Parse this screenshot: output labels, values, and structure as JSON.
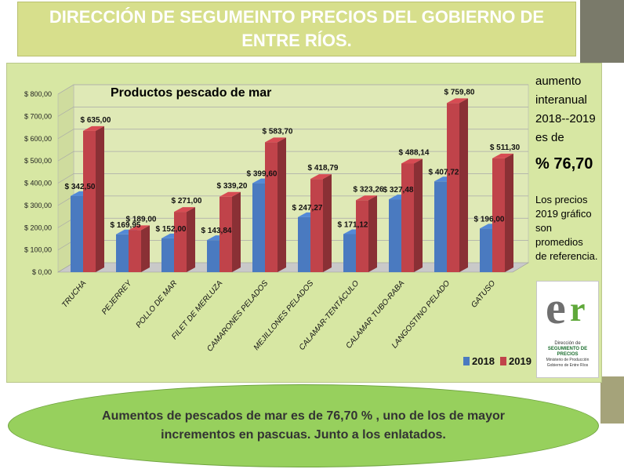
{
  "title": "DIRECCIÓN DE SEGUMEINTO PRECIOS DEL GOBIERNO DE ENTRE RÍOS.",
  "colors": {
    "series_2018": "#4a7ac0",
    "series_2019": "#c0434a",
    "panel_bg": "#d7e7a3",
    "title_bg": "#d7df8c",
    "oval_bg": "#97d05d"
  },
  "annotation": {
    "line1": "aumento",
    "line2": "interanual",
    "line3": "2018--2019",
    "line4": "es de",
    "percent": "% 76,70",
    "note1": "Los precios",
    "note2": "2019 gráfico",
    "note3": "son promedios",
    "note4": "de referencia."
  },
  "logo": {
    "letters": "er",
    "line1": "Dirección de",
    "line2": "SEGUMIENTO DE PRECIOS",
    "line3": "Ministerio de Producción",
    "line4": "Gobierno de Entre Ríos"
  },
  "bottom_text": "Aumentos de pescados de mar es de 76,70 % , uno de los de mayor incrementos en pascuas. Junto a los enlatados.",
  "chart_data": {
    "type": "bar",
    "title": "Productos  pescado de mar",
    "xlabel": "",
    "ylabel": "",
    "ylim": [
      0,
      800
    ],
    "yticks": [
      "$ 0,00",
      "$ 100,00",
      "$ 200,00",
      "$ 300,00",
      "$ 400,00",
      "$ 500,00",
      "$ 600,00",
      "$ 700,00",
      "$ 800,00"
    ],
    "categories": [
      "TRUCHA",
      "PEJERREY",
      "POLLO DE MAR",
      "FILET DE MERLUZA",
      "CAMARONES PELADOS",
      "MEJILLONES PELADOS",
      "CALAMAR-TENTÁCULO",
      "CALAMAR TUBO-RABA",
      "LANGOSTINO PELADO",
      "GATUSO"
    ],
    "legend_position": "bottom-right",
    "series": [
      {
        "name": "2018",
        "values": [
          342.5,
          169.95,
          152.0,
          143.84,
          399.6,
          247.27,
          171.12,
          327.48,
          407.72,
          196.0
        ],
        "labels": [
          "$ 342,50",
          "$ 169,95",
          "$ 152,00",
          "$ 143,84",
          "$ 399,60",
          "$ 247,27",
          "$ 171,12",
          "$ 327,48",
          "$ 407,72",
          "$ 196,00"
        ]
      },
      {
        "name": "2019",
        "values": [
          635.0,
          189.0,
          271.0,
          339.2,
          583.7,
          418.79,
          323.26,
          488.14,
          759.8,
          511.3
        ],
        "labels": [
          "$ 635,00",
          "$ 189,00",
          "$ 271,00",
          "$ 339,20",
          "$ 583,70",
          "$ 418,79",
          "$ 323,26",
          "$ 488,14",
          "$ 759,80",
          "$ 511,30"
        ]
      }
    ]
  }
}
